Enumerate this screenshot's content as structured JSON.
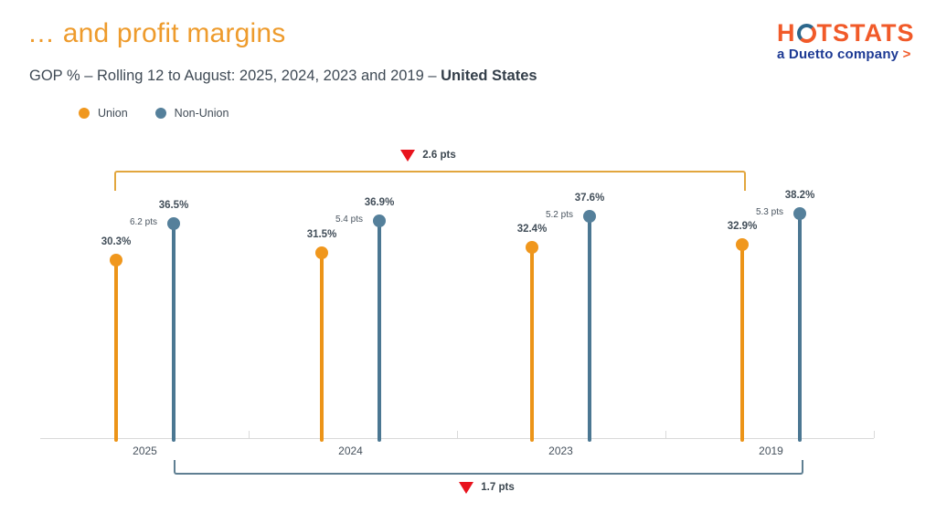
{
  "header": {
    "title": "… and profit margins",
    "subtitle_regular": "GOP % – Rolling 12 to August: 2025, 2024, 2023 and 2019 – ",
    "subtitle_bold": "United States"
  },
  "logo": {
    "text": "HOTSTATS",
    "letter_h": "H",
    "letters_rest": "TSTATS",
    "tagline": "a Duetto company",
    "arrow": ">"
  },
  "legend": {
    "items": [
      {
        "label": "Union",
        "color": "#F0971D"
      },
      {
        "label": "Non-Union",
        "color": "#55809B"
      }
    ]
  },
  "annotations": {
    "top_bracket": {
      "triangle_icon": "red-down-triangle",
      "label": "2.6 pts",
      "series": "Union",
      "from": "2025",
      "to": "2019"
    },
    "bottom_bracket": {
      "triangle_icon": "red-down-triangle",
      "label": "1.7 pts",
      "series": "Non-Union",
      "from": "2025",
      "to": "2019"
    }
  },
  "chart_data": {
    "type": "lollipop-grouped",
    "title": "GOP % – Rolling 12 to August: 2025, 2024, 2023 and 2019 – United States",
    "categories": [
      "2025",
      "2024",
      "2023",
      "2019"
    ],
    "series": [
      {
        "name": "Union",
        "color": "#F0971D",
        "values": [
          30.3,
          31.5,
          32.4,
          32.9
        ],
        "labels": [
          "30.3%",
          "31.5%",
          "32.4%",
          "32.9%"
        ]
      },
      {
        "name": "Non-Union",
        "color": "#55809B",
        "values": [
          36.5,
          36.9,
          37.6,
          38.2
        ],
        "labels": [
          "36.5%",
          "36.9%",
          "37.6%",
          "38.2%"
        ]
      }
    ],
    "gap_labels": [
      "6.2 pts",
      "5.4 pts",
      "5.2 pts",
      "5.3 pts"
    ],
    "top_bracket": {
      "series": "Union",
      "from": "2025",
      "to": "2019",
      "label": "2.6 pts",
      "delta": 2.6
    },
    "bottom_bracket": {
      "series": "Non-Union",
      "from": "2025",
      "to": "2019",
      "label": "1.7 pts",
      "delta": 1.7
    },
    "ylim": [
      0,
      40
    ],
    "baseline_value": 0,
    "grid": false,
    "legend_position": "top-left"
  },
  "colors": {
    "title": "#EE9B2C",
    "union": "#F0971D",
    "non_union": "#55809B",
    "top_bracket": "#E2A63E",
    "bottom_bracket": "#5F7F92",
    "triangle_red": "#E8131D",
    "baseline": "#D9D9D9",
    "text_dark": "#3F4A55",
    "logo_orange": "#F15A29",
    "logo_navy": "#1D3A94"
  }
}
